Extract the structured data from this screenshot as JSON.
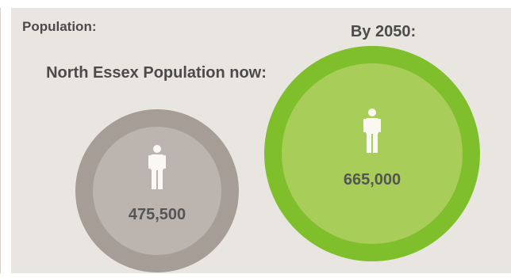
{
  "section": {
    "title": "Population:"
  },
  "current": {
    "caption": "North Essex Population now:",
    "value": "475,500",
    "icon": "person-icon"
  },
  "future": {
    "caption": "By 2050:",
    "value": "665,000",
    "icon": "person-icon"
  },
  "colors": {
    "background": "#e9e6e1",
    "current_ring": "#a59d96",
    "current_fill": "#bcb4af",
    "future_ring": "#80bf2c",
    "future_fill": "#a8cd58",
    "icon": "#faf8f3",
    "text": "#4b4b4b"
  }
}
